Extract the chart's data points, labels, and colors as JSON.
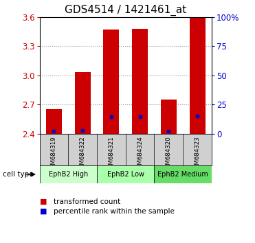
{
  "title": "GDS4514 / 1421461_at",
  "samples": [
    "GSM684319",
    "GSM684322",
    "GSM684321",
    "GSM684324",
    "GSM684320",
    "GSM684323"
  ],
  "bar_values": [
    2.65,
    3.03,
    3.47,
    3.48,
    2.75,
    3.6
  ],
  "percentile_y": [
    2.425,
    2.435,
    2.575,
    2.575,
    2.425,
    2.585
  ],
  "bar_color": "#cc0000",
  "percentile_color": "#0000cc",
  "ymin": 2.4,
  "ymax": 3.6,
  "yticks_left": [
    2.4,
    2.7,
    3.0,
    3.3,
    3.6
  ],
  "yticks_right_vals": [
    0,
    25,
    50,
    75,
    100
  ],
  "yticks_right_labels": [
    "0",
    "25",
    "50",
    "75",
    "100%"
  ],
  "ylabel_left_color": "#cc0000",
  "ylabel_right_color": "#0000cc",
  "bar_width": 0.55,
  "title_fontsize": 11,
  "tick_fontsize": 8.5,
  "cell_type_label": "cell type",
  "legend_red": "transformed count",
  "legend_blue": "percentile rank within the sample",
  "bg_color": "#ffffff",
  "plot_bg": "#ffffff",
  "grid_color": "#999999",
  "sample_bg": "#d0d0d0",
  "ct_colors": {
    "EphB2 High": "#ccffcc",
    "EphB2 Low": "#aaffaa",
    "EphB2 Medium": "#66dd66"
  },
  "ct_ranges": [
    [
      "EphB2 High",
      -0.5,
      1.5
    ],
    [
      "EphB2 Low",
      1.5,
      3.5
    ],
    [
      "EphB2 Medium",
      3.5,
      5.5
    ]
  ]
}
